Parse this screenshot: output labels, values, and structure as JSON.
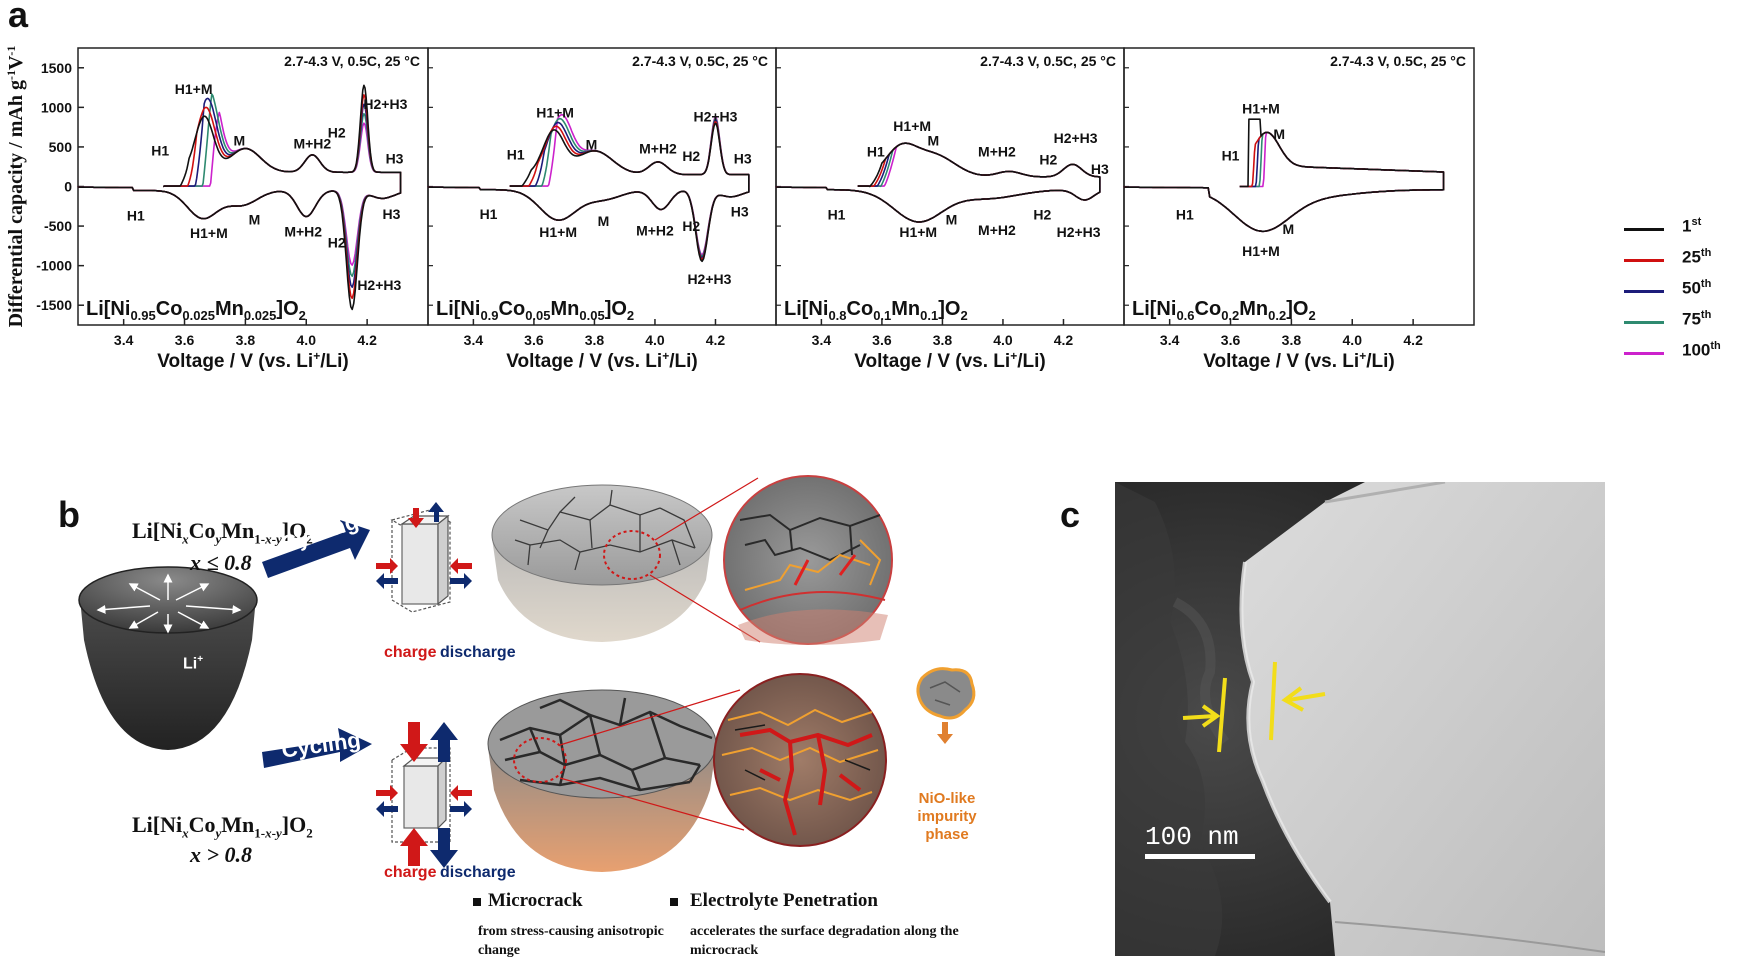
{
  "panel_labels": {
    "a": "a",
    "b": "b",
    "c": "c"
  },
  "colors": {
    "c1": "#111111",
    "c25": "#d01010",
    "c50": "#1c1c7a",
    "c75": "#2e8a70",
    "c100": "#cc22cc",
    "arrow_blue": "#0e2a6e",
    "red": "#d01818",
    "yellow": "#f2dd1a"
  },
  "chart_data": [
    {
      "type": "line",
      "title": "Li[Ni0.95Co0.025Mn0.025]O2",
      "condition": "2.7-4.3 V, 0.5C, 25 °C",
      "xlabel": "Voltage / V (vs. Li+/Li)",
      "ylabel": "Differential capacity / mAh g-1V-1",
      "xlim": [
        3.25,
        4.4
      ],
      "ylim": [
        -1750,
        1750
      ],
      "xticks": [
        "3.4",
        "3.6",
        "3.8",
        "4.0",
        "4.2"
      ],
      "yticks": [
        "1500",
        "1000",
        "500",
        "0",
        "-500",
        "-1000",
        "-1500"
      ],
      "legend": [
        "1st",
        "25th",
        "50th",
        "75th",
        "100th"
      ],
      "peaks": [
        {
          "phase": "H1+M",
          "charge_V": 3.68,
          "charge": 1150
        },
        {
          "phase": "H2+H3",
          "charge_V": 4.19,
          "charge": 1120,
          "discharge_V": 4.15,
          "discharge": -1520
        }
      ],
      "annotations": [
        {
          "text": "H1+M",
          "x": 3.63,
          "y": 1170
        },
        {
          "text": "H1",
          "x": 3.52,
          "y": 390
        },
        {
          "text": "M",
          "x": 3.78,
          "y": 520
        },
        {
          "text": "M+H2",
          "x": 4.02,
          "y": 480
        },
        {
          "text": "H2",
          "x": 4.1,
          "y": 620
        },
        {
          "text": "H2+H3",
          "x": 4.26,
          "y": 980
        },
        {
          "text": "H3",
          "x": 4.29,
          "y": 290
        },
        {
          "text": "H1",
          "x": 3.44,
          "y": -430
        },
        {
          "text": "H1+M",
          "x": 3.68,
          "y": -650
        },
        {
          "text": "M",
          "x": 3.83,
          "y": -480
        },
        {
          "text": "M+H2",
          "x": 3.99,
          "y": -630
        },
        {
          "text": "H2",
          "x": 4.1,
          "y": -770
        },
        {
          "text": "H3",
          "x": 4.28,
          "y": -410
        },
        {
          "text": "H2+H3",
          "x": 4.24,
          "y": -1310
        }
      ]
    },
    {
      "type": "line",
      "title": "Li[Ni0.9Co0.05Mn0.05]O2",
      "condition": "2.7-4.3 V, 0.5C, 25 °C",
      "xlabel": "Voltage / V (vs. Li+/Li)",
      "xlim": [
        3.25,
        4.4
      ],
      "ylim": [
        -1750,
        1750
      ],
      "xticks": [
        "3.4",
        "3.6",
        "3.8",
        "4.0",
        "4.2"
      ],
      "annotations": [
        {
          "text": "H1+M",
          "x": 3.67,
          "y": 870
        },
        {
          "text": "H1",
          "x": 3.54,
          "y": 340
        },
        {
          "text": "M",
          "x": 3.79,
          "y": 470
        },
        {
          "text": "M+H2",
          "x": 4.01,
          "y": 420
        },
        {
          "text": "H2",
          "x": 4.12,
          "y": 320
        },
        {
          "text": "H2+H3",
          "x": 4.2,
          "y": 820
        },
        {
          "text": "H3",
          "x": 4.29,
          "y": 290
        },
        {
          "text": "H1",
          "x": 3.45,
          "y": -410
        },
        {
          "text": "H1+M",
          "x": 3.68,
          "y": -640
        },
        {
          "text": "M",
          "x": 3.83,
          "y": -500
        },
        {
          "text": "M+H2",
          "x": 4.0,
          "y": -620
        },
        {
          "text": "H2",
          "x": 4.12,
          "y": -560
        },
        {
          "text": "H3",
          "x": 4.28,
          "y": -380
        },
        {
          "text": "H2+H3",
          "x": 4.18,
          "y": -1230
        }
      ]
    },
    {
      "type": "line",
      "title": "Li[Ni0.8Co0.1Mn0.1]O2",
      "condition": "2.7-4.3 V, 0.5C, 25 °C",
      "xlabel": "Voltage / V (vs. Li+/Li)",
      "xlim": [
        3.25,
        4.4
      ],
      "ylim": [
        -1750,
        1750
      ],
      "xticks": [
        "3.4",
        "3.6",
        "3.8",
        "4.0",
        "4.2"
      ],
      "annotations": [
        {
          "text": "H1+M",
          "x": 3.7,
          "y": 700
        },
        {
          "text": "H1",
          "x": 3.58,
          "y": 380
        },
        {
          "text": "M",
          "x": 3.77,
          "y": 520
        },
        {
          "text": "M+H2",
          "x": 3.98,
          "y": 380
        },
        {
          "text": "H2",
          "x": 4.15,
          "y": 280
        },
        {
          "text": "H2+H3",
          "x": 4.24,
          "y": 550
        },
        {
          "text": "H3",
          "x": 4.32,
          "y": 160
        },
        {
          "text": "H1",
          "x": 3.45,
          "y": -420
        },
        {
          "text": "H1+M",
          "x": 3.72,
          "y": -640
        },
        {
          "text": "M",
          "x": 3.83,
          "y": -480
        },
        {
          "text": "M+H2",
          "x": 3.98,
          "y": -610
        },
        {
          "text": "H2",
          "x": 4.13,
          "y": -420
        },
        {
          "text": "H2+H3",
          "x": 4.25,
          "y": -640
        }
      ]
    },
    {
      "type": "line",
      "title": "Li[Ni0.6Co0.2Mn0.2]O2",
      "condition": "2.7-4.3 V, 0.5C, 25 °C",
      "xlabel": "Voltage / V (vs. Li+/Li)",
      "xlim": [
        3.25,
        4.4
      ],
      "ylim": [
        -1750,
        1750
      ],
      "xticks": [
        "3.4",
        "3.6",
        "3.8",
        "4.0",
        "4.2"
      ],
      "annotations": [
        {
          "text": "H1+M",
          "x": 3.7,
          "y": 920
        },
        {
          "text": "H1",
          "x": 3.6,
          "y": 330
        },
        {
          "text": "M",
          "x": 3.76,
          "y": 600
        },
        {
          "text": "H1",
          "x": 3.45,
          "y": -420
        },
        {
          "text": "M",
          "x": 3.79,
          "y": -600
        },
        {
          "text": "H1+M",
          "x": 3.7,
          "y": -880
        }
      ]
    }
  ],
  "panel_b": {
    "formula_top": "Li[NixCoyMn1-x-y]O2",
    "cond_top": "x ≤ 0.8",
    "formula_bottom": "Li[NixCoyMn1-x-y]O2",
    "cond_bottom": "x > 0.8",
    "cycling": "Cycling",
    "charge": "charge",
    "discharge": "discharge",
    "li_label": "Li+",
    "nio_label": "NiO-like impurity phase",
    "bullet1_title": "Microcrack",
    "bullet1_desc": "from stress-causing anisotropic change",
    "bullet2_title": "Electrolyte Penetration",
    "bullet2_desc": "accelerates the surface degradation along the microcrack"
  },
  "panel_c": {
    "scale_bar": "100 nm"
  }
}
